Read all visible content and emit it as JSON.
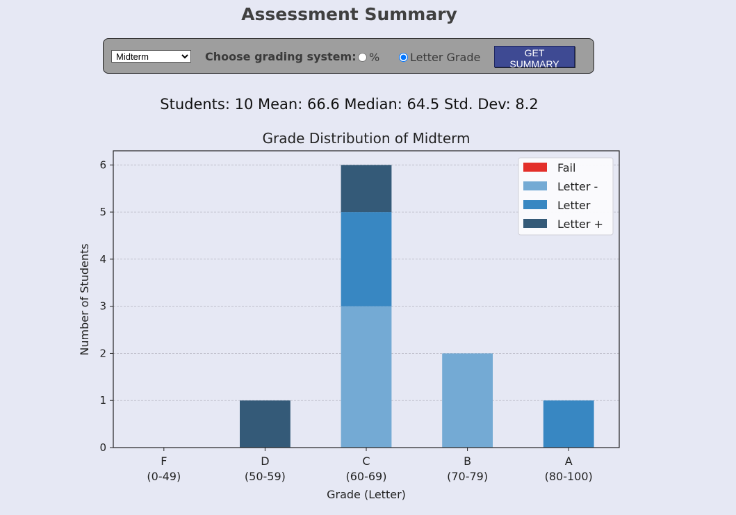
{
  "page": {
    "title": "Assessment Summary",
    "assessment_select": {
      "selected": "Midterm",
      "options": [
        "Midterm"
      ]
    },
    "grading_label": "Choose grading system:",
    "percent_option": "%",
    "letter_option": "Letter Grade",
    "selected_system": "letter",
    "get_summary_label": "GET SUMMARY",
    "stats": "Students: 10 Mean: 66.6 Median: 64.5 Std. Dev: 8.2"
  },
  "colors": {
    "fail": "#e32f2a",
    "letter_minus": "#74aad4",
    "letter": "#3887c2",
    "letter_plus": "#345a78",
    "button": "#3e4a93"
  },
  "chart_data": {
    "type": "bar",
    "stacked": true,
    "title": "Grade Distribution of Midterm",
    "xlabel": "Grade (Letter)",
    "ylabel": "Number of Students",
    "ylim": [
      0,
      6.3
    ],
    "yticks": [
      "0",
      "1",
      "2",
      "3",
      "4",
      "5",
      "6"
    ],
    "grid": "horizontal-dashed",
    "legend_position": "top-right",
    "categories": [
      {
        "letter": "F",
        "range": "(0-49)"
      },
      {
        "letter": "D",
        "range": "(50-59)"
      },
      {
        "letter": "C",
        "range": "(60-69)"
      },
      {
        "letter": "B",
        "range": "(70-79)"
      },
      {
        "letter": "A",
        "range": "(80-100)"
      }
    ],
    "series": [
      {
        "name": "Fail",
        "color": "#e32f2a",
        "values": [
          0,
          0,
          0,
          0,
          0
        ]
      },
      {
        "name": "Letter -",
        "color": "#74aad4",
        "values": [
          0,
          0,
          3,
          2,
          0
        ]
      },
      {
        "name": "Letter",
        "color": "#3887c2",
        "values": [
          0,
          0,
          2,
          0,
          1
        ]
      },
      {
        "name": "Letter +",
        "color": "#345a78",
        "values": [
          0,
          1,
          1,
          0,
          0
        ]
      }
    ]
  }
}
